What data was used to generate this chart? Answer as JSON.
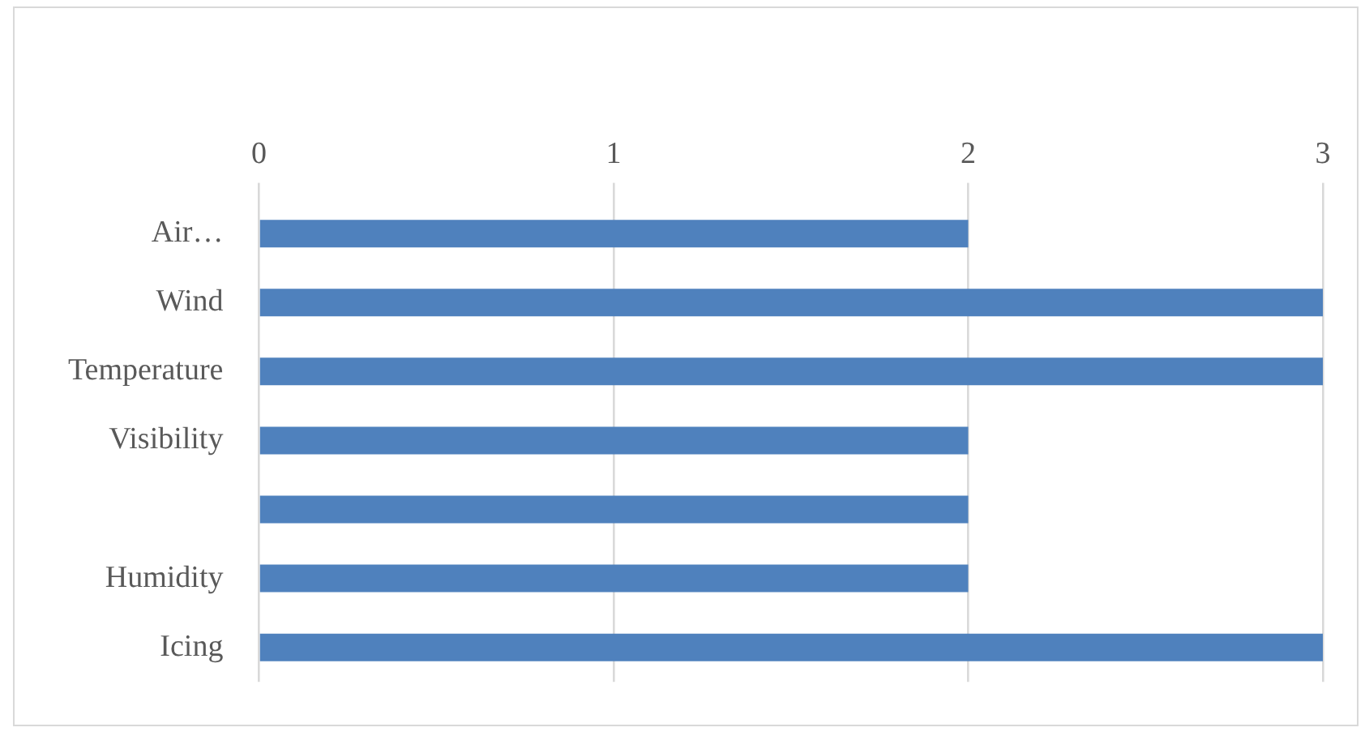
{
  "chart_data": {
    "type": "bar",
    "orientation": "horizontal",
    "categories": [
      "Air…",
      "Wind",
      "Temperature",
      "Visibility",
      null,
      "Humidity",
      "Icing"
    ],
    "values": [
      2,
      3,
      3,
      2,
      2,
      2,
      3
    ],
    "color": "#4f81bd",
    "xlim": [
      0,
      3
    ],
    "xticks": [
      0,
      1,
      2,
      3
    ],
    "grid": "x",
    "legend": false
  }
}
